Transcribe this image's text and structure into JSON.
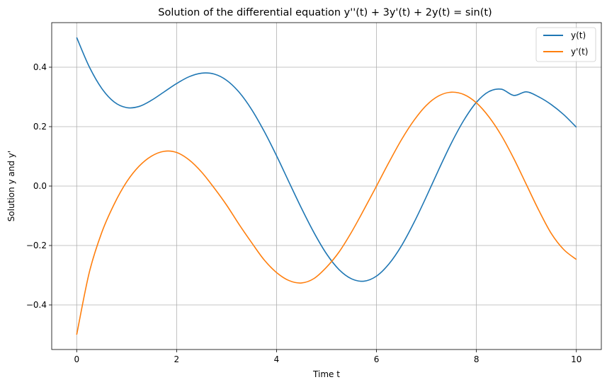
{
  "chart_data": {
    "type": "line",
    "title": "Solution of the differential equation y''(t) + 3y'(t) + 2y(t) = sin(t)",
    "xlabel": "Time t",
    "ylabel": "Solution y and y'",
    "xlim": [
      -0.5,
      10.5
    ],
    "ylim": [
      -0.55,
      0.55
    ],
    "xticks": [
      0,
      2,
      4,
      6,
      8,
      10
    ],
    "xtick_labels": [
      "0",
      "2",
      "4",
      "6",
      "8",
      "10"
    ],
    "yticks": [
      -0.4,
      -0.2,
      0.0,
      0.2,
      0.4
    ],
    "ytick_labels": [
      "−0.4",
      "−0.2",
      "0.0",
      "0.2",
      "0.4"
    ],
    "grid": true,
    "legend_position": "top-right",
    "x": [
      0,
      0.25,
      0.5,
      0.75,
      1,
      1.25,
      1.5,
      1.75,
      2,
      2.25,
      2.5,
      2.75,
      3,
      3.25,
      3.5,
      3.75,
      4,
      4.25,
      4.5,
      4.75,
      5,
      5.25,
      5.5,
      5.75,
      6,
      6.25,
      6.5,
      6.75,
      7,
      7.25,
      7.5,
      7.75,
      8,
      8.25,
      8.5,
      8.75,
      9,
      9.25,
      9.5,
      9.75,
      10
    ],
    "series": [
      {
        "name": "y(t)",
        "color": "#1f77b4",
        "values": [
          0.5,
          0.402,
          0.329,
          0.283,
          0.264,
          0.268,
          0.289,
          0.317,
          0.345,
          0.368,
          0.38,
          0.377,
          0.356,
          0.316,
          0.258,
          0.185,
          0.102,
          0.013,
          -0.075,
          -0.157,
          -0.228,
          -0.281,
          -0.312,
          -0.32,
          -0.303,
          -0.262,
          -0.201,
          -0.123,
          -0.035,
          0.057,
          0.145,
          0.222,
          0.282,
          0.318,
          0.326,
          0.305,
          0.317,
          0.3,
          0.274,
          0.24,
          0.198
        ]
      },
      {
        "name": "y'(t)",
        "color": "#ff7f0e",
        "values": [
          -0.5,
          -0.292,
          -0.157,
          -0.061,
          0.014,
          0.067,
          0.101,
          0.117,
          0.113,
          0.088,
          0.047,
          -0.006,
          -0.064,
          -0.129,
          -0.19,
          -0.248,
          -0.291,
          -0.318,
          -0.326,
          -0.311,
          -0.273,
          -0.222,
          -0.155,
          -0.079,
          0.0,
          0.08,
          0.156,
          0.221,
          0.272,
          0.304,
          0.316,
          0.308,
          0.28,
          0.233,
          0.17,
          0.092,
          0.005,
          -0.082,
          -0.16,
          -0.214,
          -0.247
        ]
      }
    ]
  }
}
